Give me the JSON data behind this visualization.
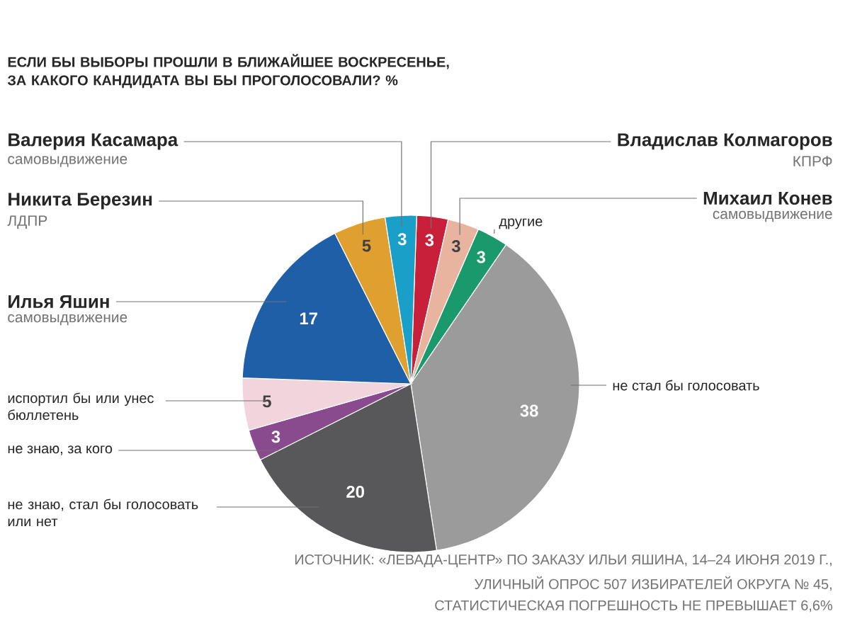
{
  "chart_data": {
    "type": "pie",
    "title": "ЕСЛИ БЫ ВЫБОРЫ ПРОШЛИ В БЛИЖАЙШЕЕ ВОСКРЕСЕНЬЕ, ЗА КАКОГО КАНДИДАТА ВЫ БЫ ПРОГОЛОСОВАЛИ? %",
    "categories": [
      "Владислав Колмагоров",
      "Михаил Конев",
      "другие",
      "не стал бы голосовать",
      "не знаю, стал бы голосовать или нет",
      "не знаю, за кого",
      "испортил бы или унес бюллетень",
      "Илья Яшин",
      "Никита Березин",
      "Валерия Касамара"
    ],
    "values": [
      3,
      3,
      3,
      38,
      20,
      3,
      5,
      17,
      5,
      3
    ],
    "colors": [
      "#c8203a",
      "#e8b4a0",
      "#1a9a6c",
      "#9b9b9b",
      "#58585a",
      "#8a4a8e",
      "#f2d4dc",
      "#1f5fa8",
      "#e0a030",
      "#1aa0c8"
    ],
    "data_labels": true,
    "annotations": [
      {
        "text": "КПРФ",
        "x": "Владислав Колмагоров"
      },
      {
        "text": "самовыдвижение",
        "x": "Михаил Конев"
      },
      {
        "text": "самовыдвижение",
        "x": "Илья Яшин"
      },
      {
        "text": "ЛДПР",
        "x": "Никита Березин"
      },
      {
        "text": "самовыдвижение",
        "x": "Валерия Касамара"
      },
      "ИСТОЧНИК: «ЛЕВАДА-ЦЕНТР» ПО ЗАКАЗУ ИЛЬИ ЯШИНА, 14–24 ИЮНЯ 2019 Г.,",
      "УЛИЧНЫЙ ОПРОС 507 ИЗБИРАТЕЛЕЙ ОКРУГА № 45,",
      "СТАТИСТИЧЕСКАЯ ПОГРЕШНОСТЬ НЕ ПРЕВЫШАЕТ 6,6%"
    ]
  }
}
